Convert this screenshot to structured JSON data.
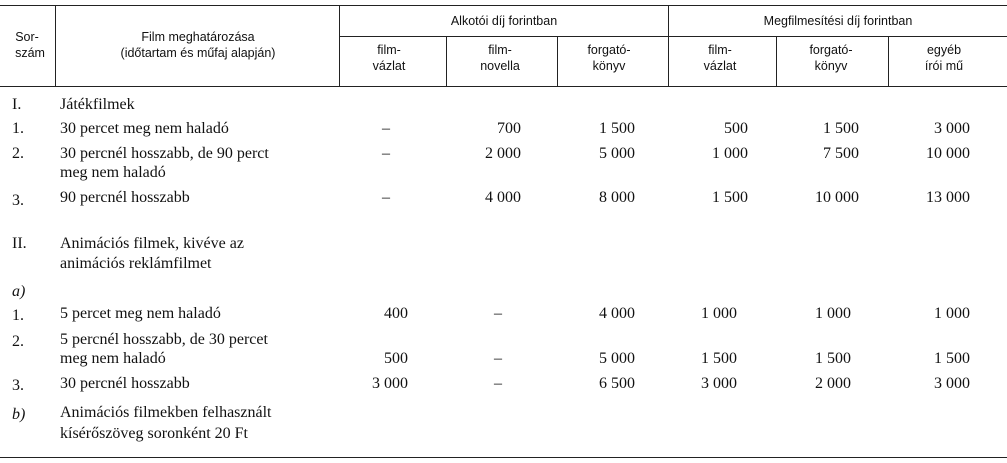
{
  "header": {
    "sorszam": [
      "Sor-",
      "szám"
    ],
    "film": [
      "Film meghatározása",
      "(időtartam és műfaj alapján)"
    ],
    "alkotoi": "Alkotói díj forintban",
    "megfilm": "Megfilmesítési díj forintban",
    "cols": [
      [
        "film-",
        "vázlat"
      ],
      [
        "film-",
        "novella"
      ],
      [
        "forgató-",
        "könyv"
      ],
      [
        "film-",
        "vázlat"
      ],
      [
        "forgató-",
        "könyv"
      ],
      [
        "egyéb",
        "írói mű"
      ]
    ]
  },
  "rows": [
    {
      "num": "I.",
      "lines": [
        "Játékfilmek"
      ],
      "italic_num": false,
      "values": []
    },
    {
      "num": "1.",
      "lines": [
        "30 percet meg nem haladó"
      ],
      "values": [
        "–",
        "700",
        "1 500",
        "500",
        "1 500",
        "3 000"
      ]
    },
    {
      "num": "2.",
      "lines": [
        "30 percnél hosszabb, de 90 perct",
        "meg nem haladó"
      ],
      "values": [
        "–",
        "2 000",
        "5 000",
        "1 000",
        "7 500",
        "10 000"
      ]
    },
    {
      "num": "3.",
      "lines": [
        "90 percnél hosszabb"
      ],
      "values": [
        "–",
        "4 000",
        "8 000",
        "1 500",
        "10 000",
        "13 000"
      ]
    },
    {
      "num": "II.",
      "lines": [
        "Animációs filmek, kivéve az",
        "animációs reklámfilmet"
      ],
      "values": []
    },
    {
      "num": "a)",
      "lines": [],
      "values": []
    },
    {
      "num": "1.",
      "lines": [
        "5 percet meg nem haladó"
      ],
      "values": [
        "400",
        "–",
        "4 000",
        "1 000",
        "1 000",
        "1 000"
      ]
    },
    {
      "num": "2.",
      "lines": [
        "5 percnél hosszabb, de 30 percet",
        "meg nem haladó"
      ],
      "values": [
        "500",
        "–",
        "5 000",
        "1 500",
        "1 500",
        "1 500"
      ]
    },
    {
      "num": "3.",
      "lines": [
        "30 percnél hosszabb"
      ],
      "values": [
        "3 000",
        "–",
        "6 500",
        "3 000",
        "2 000",
        "3 000"
      ]
    },
    {
      "num": "b)",
      "lines": [
        "Animációs filmekben felhasznált",
        "kísérőszöveg soronként 20 Ft"
      ],
      "values": []
    }
  ]
}
